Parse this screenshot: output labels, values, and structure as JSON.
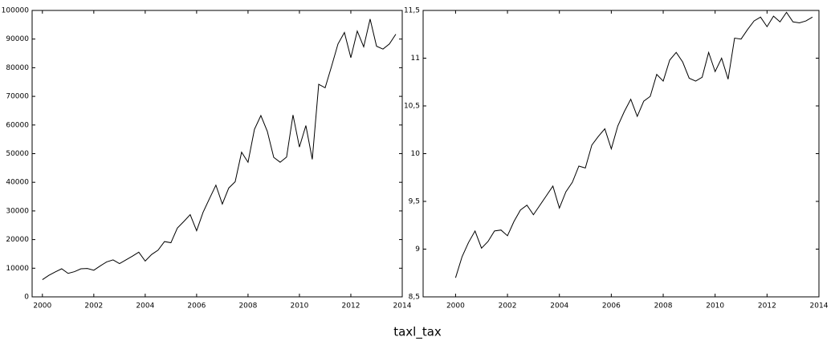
{
  "title": "taxl_tax",
  "chart_data": [
    {
      "type": "line",
      "color": "#000000",
      "x": [
        2000,
        2000.25,
        2000.5,
        2000.75,
        2001,
        2001.25,
        2001.5,
        2001.75,
        2002,
        2002.25,
        2002.5,
        2002.75,
        2003,
        2003.25,
        2003.5,
        2003.75,
        2004,
        2004.25,
        2004.5,
        2004.75,
        2005,
        2005.25,
        2005.5,
        2005.75,
        2006,
        2006.25,
        2006.5,
        2006.75,
        2007,
        2007.25,
        2007.5,
        2007.75,
        2008,
        2008.25,
        2008.5,
        2008.75,
        2009,
        2009.25,
        2009.5,
        2009.75,
        2010,
        2010.25,
        2010.5,
        2010.75,
        2011,
        2011.25,
        2011.5,
        2011.75,
        2012,
        2012.25,
        2012.5,
        2012.75,
        2013,
        2013.25,
        2013.5,
        2013.75
      ],
      "values": [
        6000,
        7500,
        8700,
        9800,
        8200,
        8800,
        9800,
        9900,
        9300,
        10800,
        12200,
        12900,
        11600,
        12900,
        14200,
        15600,
        12500,
        14800,
        16300,
        19300,
        18900,
        24000,
        26300,
        28700,
        23100,
        29500,
        34300,
        39000,
        32400,
        38000,
        40200,
        50500,
        47000,
        58500,
        63300,
        57800,
        48700,
        47000,
        48800,
        63500,
        52300,
        59800,
        48000,
        74200,
        73000,
        80500,
        88300,
        92300,
        83500,
        92800,
        87300,
        97000,
        87500,
        86500,
        88300,
        91700
      ],
      "xlim": [
        1999.6,
        2014
      ],
      "xticks": [
        2000,
        2002,
        2004,
        2006,
        2008,
        2010,
        2012,
        2014
      ],
      "ylim": [
        0,
        100000
      ],
      "yticks": [
        0,
        10000,
        20000,
        30000,
        40000,
        50000,
        60000,
        70000,
        80000,
        90000,
        100000
      ]
    },
    {
      "type": "line",
      "color": "#000000",
      "x": [
        2000,
        2000.25,
        2000.5,
        2000.75,
        2001,
        2001.25,
        2001.5,
        2001.75,
        2002,
        2002.25,
        2002.5,
        2002.75,
        2003,
        2003.25,
        2003.5,
        2003.75,
        2004,
        2004.25,
        2004.5,
        2004.75,
        2005,
        2005.25,
        2005.5,
        2005.75,
        2006,
        2006.25,
        2006.5,
        2006.75,
        2007,
        2007.25,
        2007.5,
        2007.75,
        2008,
        2008.25,
        2008.5,
        2008.75,
        2009,
        2009.25,
        2009.5,
        2009.75,
        2010,
        2010.25,
        2010.5,
        2010.75,
        2011,
        2011.25,
        2011.5,
        2011.75,
        2012,
        2012.25,
        2012.5,
        2012.75,
        2013,
        2013.25,
        2013.5,
        2013.75
      ],
      "values": [
        8.7,
        8.92,
        9.07,
        9.19,
        9.01,
        9.08,
        9.19,
        9.2,
        9.14,
        9.29,
        9.41,
        9.46,
        9.36,
        9.46,
        9.56,
        9.66,
        9.43,
        9.6,
        9.7,
        9.87,
        9.85,
        10.09,
        10.18,
        10.26,
        10.05,
        10.29,
        10.44,
        10.57,
        10.39,
        10.55,
        10.6,
        10.83,
        10.76,
        10.98,
        11.06,
        10.96,
        10.79,
        10.76,
        10.8,
        11.06,
        10.86,
        11.0,
        10.78,
        11.21,
        11.2,
        11.3,
        11.39,
        11.43,
        11.33,
        11.44,
        11.38,
        11.48,
        11.38,
        11.37,
        11.39,
        11.43
      ],
      "xlim": [
        1998.75,
        2014
      ],
      "xticks": [
        2000,
        2002,
        2004,
        2006,
        2008,
        2010,
        2012,
        2014
      ],
      "ylim": [
        8.5,
        11.5
      ],
      "yticks": [
        {
          "value": 8.5,
          "label": "8,5"
        },
        9,
        {
          "value": 9.5,
          "label": "9,5"
        },
        10,
        {
          "value": 10.5,
          "label": "10,5"
        },
        11,
        {
          "value": 11.5,
          "label": "11,5"
        }
      ]
    }
  ]
}
